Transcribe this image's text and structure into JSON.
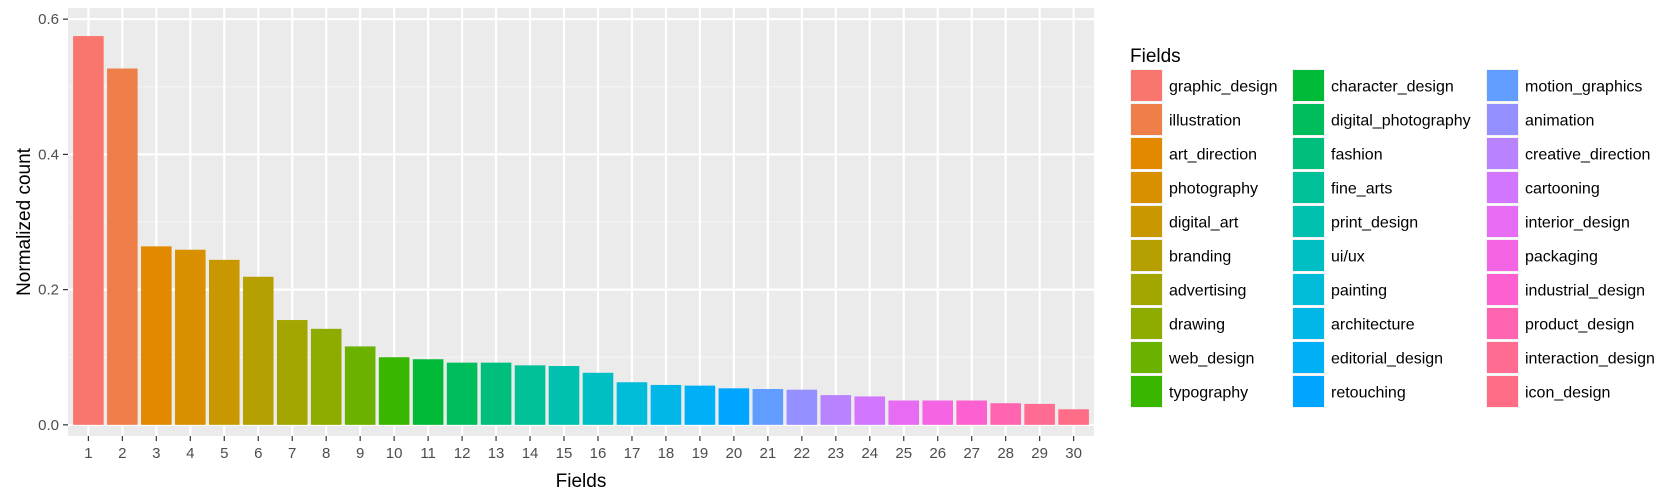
{
  "chart_data": {
    "type": "bar",
    "xlabel": "Fields",
    "ylabel": "Normalized count",
    "ylim": [
      -0.0165,
      0.6165
    ],
    "y_ticks": [
      0.0,
      0.2,
      0.4,
      0.6
    ],
    "y_tick_labels": [
      "0.0",
      "0.2",
      "0.4",
      "0.6"
    ],
    "grid": true,
    "legend_placement": "right",
    "legend_title": "Fields",
    "categories": [
      "1",
      "2",
      "3",
      "4",
      "5",
      "6",
      "7",
      "8",
      "9",
      "10",
      "11",
      "12",
      "13",
      "14",
      "15",
      "16",
      "17",
      "18",
      "19",
      "20",
      "21",
      "22",
      "23",
      "24",
      "25",
      "26",
      "27",
      "28",
      "29",
      "30"
    ],
    "values": [
      0.575,
      0.527,
      0.264,
      0.259,
      0.244,
      0.219,
      0.155,
      0.142,
      0.116,
      0.1,
      0.097,
      0.092,
      0.092,
      0.088,
      0.087,
      0.077,
      0.063,
      0.059,
      0.058,
      0.054,
      0.053,
      0.052,
      0.044,
      0.042,
      0.036,
      0.036,
      0.036,
      0.032,
      0.031,
      0.023
    ],
    "legend_entries": [
      {
        "label": "graphic_design",
        "color": "#F8766D"
      },
      {
        "label": "illustration",
        "color": "#EF7F49"
      },
      {
        "label": "art_direction",
        "color": "#E38900"
      },
      {
        "label": "photography",
        "color": "#D89000"
      },
      {
        "label": "digital_art",
        "color": "#C99800"
      },
      {
        "label": "branding",
        "color": "#B69F00"
      },
      {
        "label": "advertising",
        "color": "#A3A500"
      },
      {
        "label": "drawing",
        "color": "#8EAB00"
      },
      {
        "label": "web_design",
        "color": "#6BB100"
      },
      {
        "label": "typography",
        "color": "#39B600"
      },
      {
        "label": "character_design",
        "color": "#00BA38"
      },
      {
        "label": "digital_photography",
        "color": "#00BD5C"
      },
      {
        "label": "fashion",
        "color": "#00BF7D"
      },
      {
        "label": "fine_arts",
        "color": "#00C097"
      },
      {
        "label": "print_design",
        "color": "#00C0AF"
      },
      {
        "label": "ui/ux",
        "color": "#00BFC4"
      },
      {
        "label": "painting",
        "color": "#00BCD8"
      },
      {
        "label": "architecture",
        "color": "#00B7E8"
      },
      {
        "label": "editorial_design",
        "color": "#00B0F6"
      },
      {
        "label": "retouching",
        "color": "#00A5FF"
      },
      {
        "label": "motion_graphics",
        "color": "#619CFF"
      },
      {
        "label": "animation",
        "color": "#9590FF"
      },
      {
        "label": "creative_direction",
        "color": "#B983FF"
      },
      {
        "label": "cartooning",
        "color": "#D376FF"
      },
      {
        "label": "interior_design",
        "color": "#E76BF3"
      },
      {
        "label": "packaging",
        "color": "#F564E3"
      },
      {
        "label": "industrial_design",
        "color": "#FD61D1"
      },
      {
        "label": "product_design",
        "color": "#FF64B0"
      },
      {
        "label": "interaction_design",
        "color": "#FF6C91"
      },
      {
        "label": "icon_design",
        "color": "#FF6C85"
      }
    ]
  },
  "colors": {
    "panel_background": "#EBEBEB",
    "grid_major": "#FFFFFF",
    "grid_minor": "#F4F4F4",
    "tick_text": "#4D4D4D",
    "tick_mark": "#333333"
  }
}
